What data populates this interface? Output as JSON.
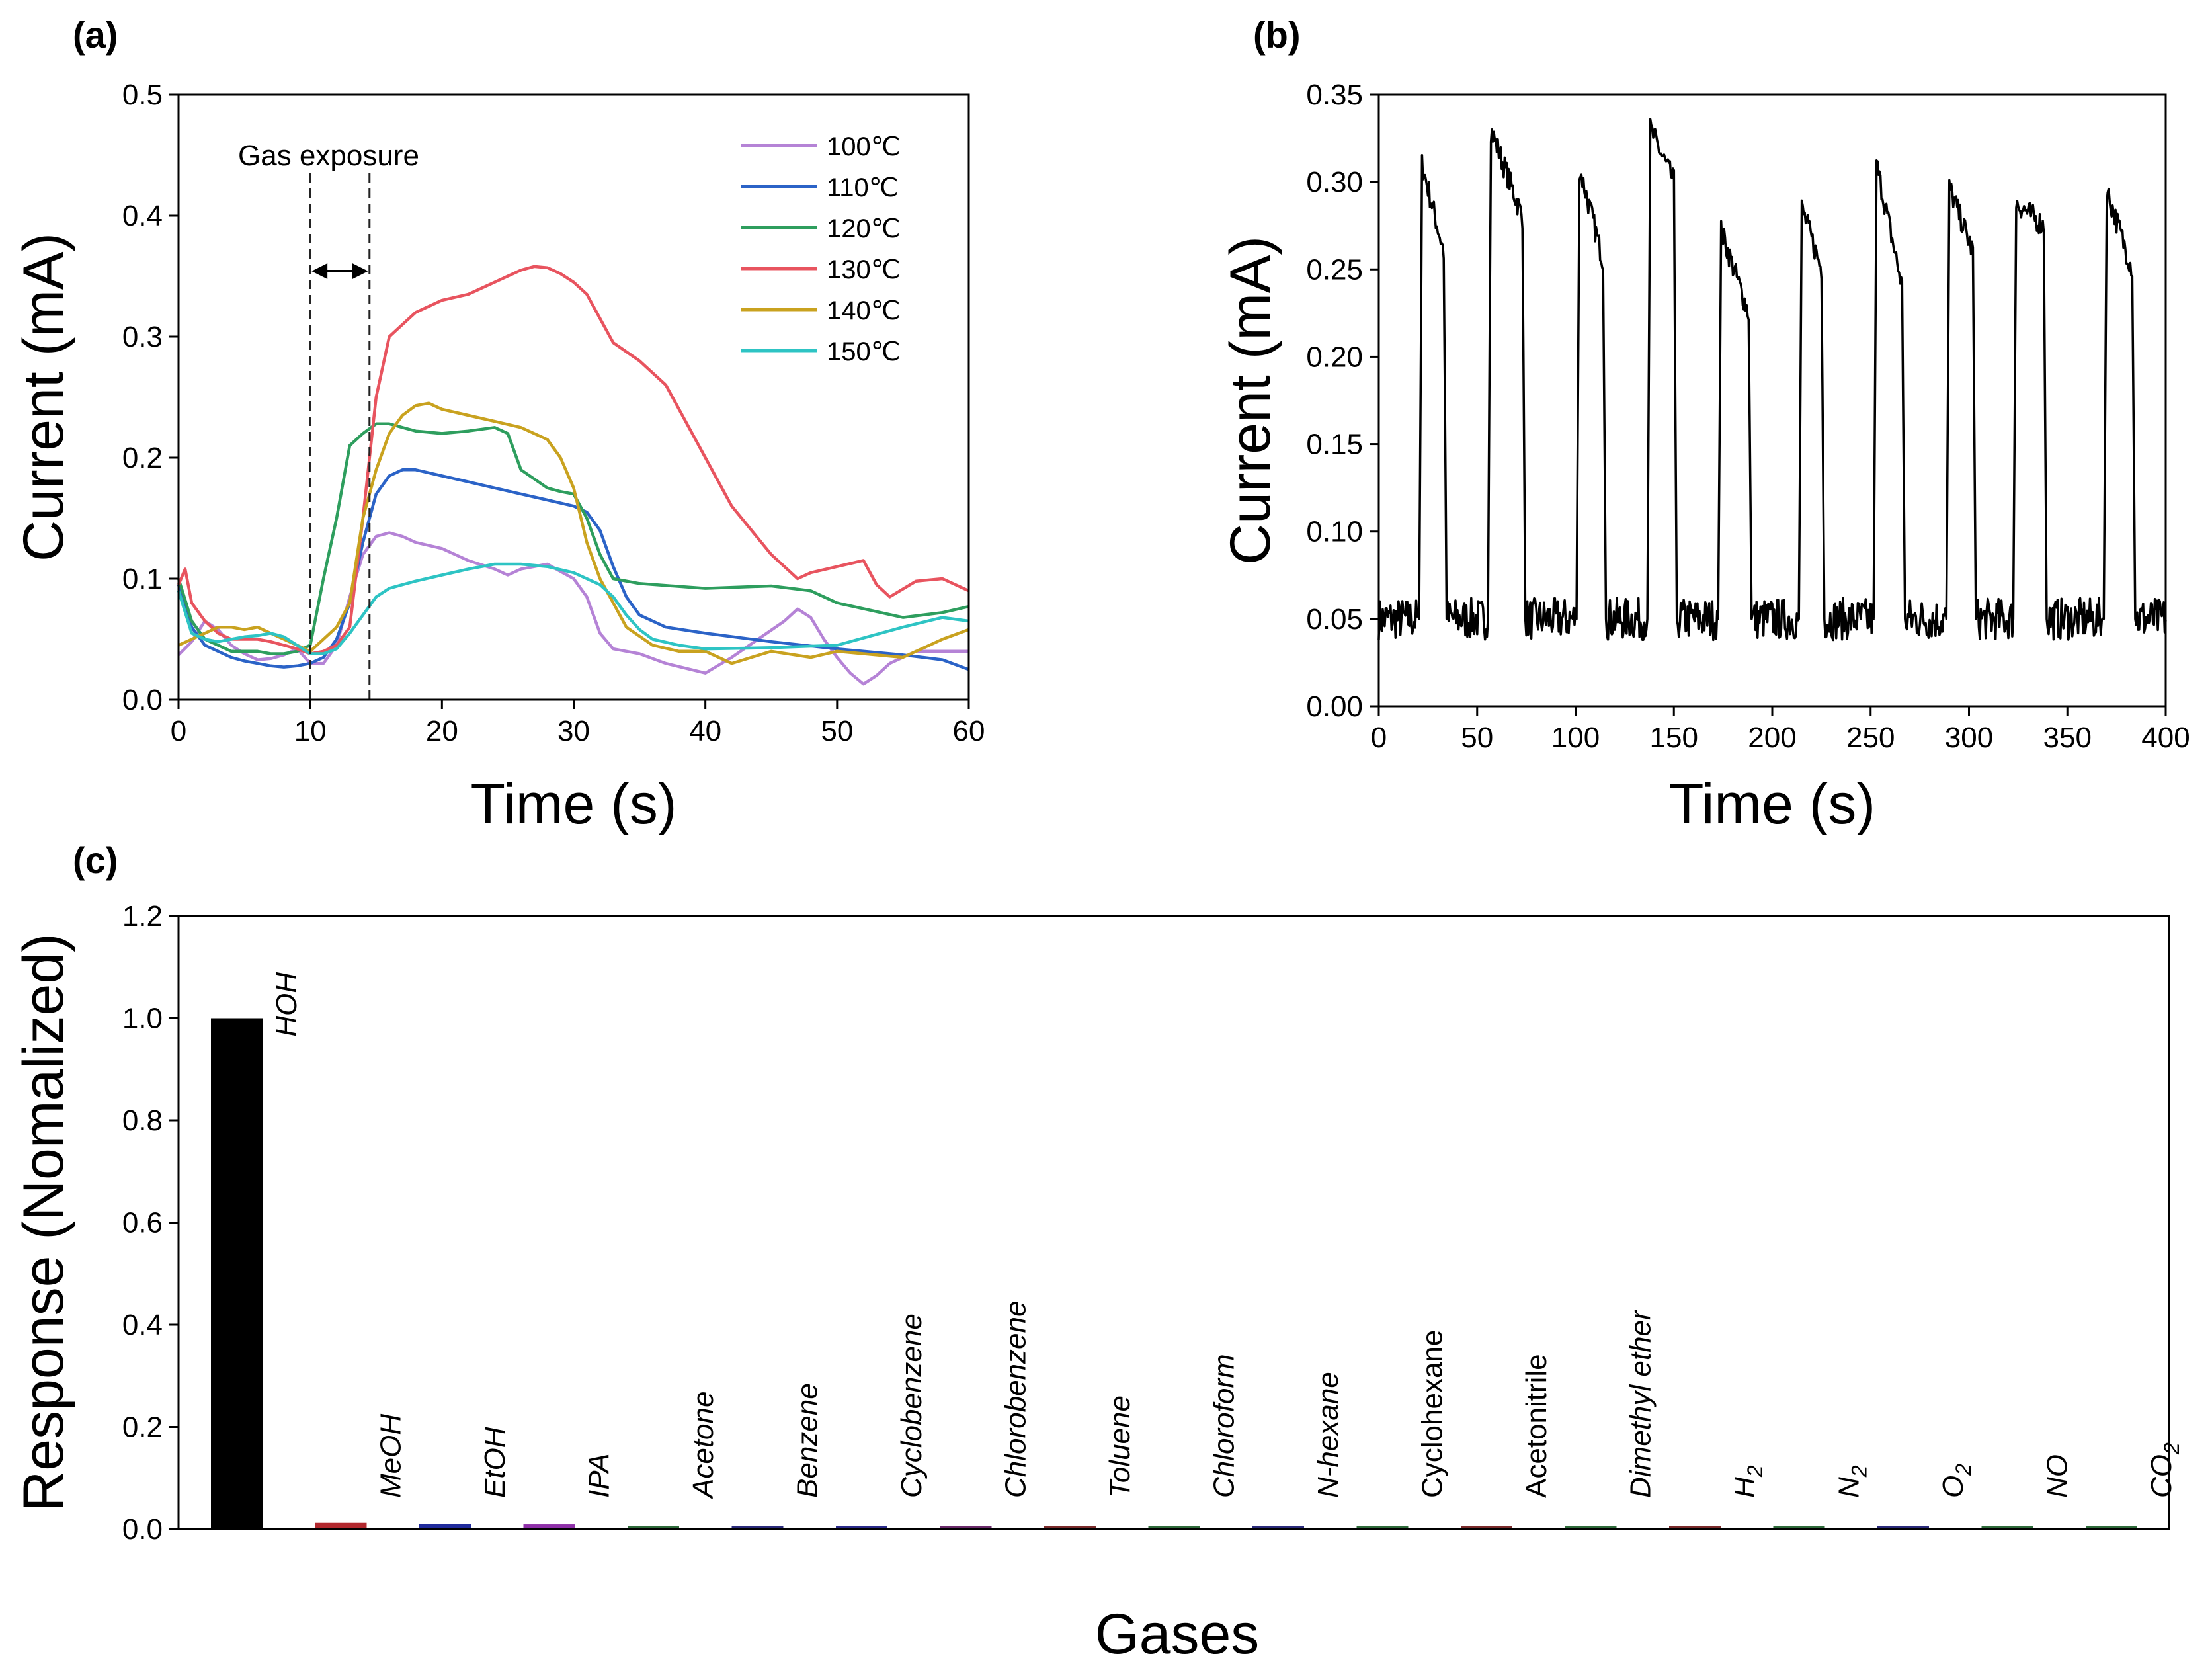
{
  "chart_data": [
    {
      "id": "a",
      "type": "line",
      "panel_label": "(a)",
      "xlabel": "Time (s)",
      "ylabel": "Current (mA)",
      "xlim": [
        0,
        60
      ],
      "ylim": [
        0,
        0.5
      ],
      "xticks": [
        "0",
        "10",
        "20",
        "30",
        "40",
        "50",
        "60"
      ],
      "yticks": [
        "0.0",
        "0.1",
        "0.2",
        "0.3",
        "0.4",
        "0.5"
      ],
      "annotation": "Gas exposure",
      "exposure_window": [
        10,
        14.5
      ],
      "legend_position": "top-right",
      "series": [
        {
          "name": "100℃",
          "color": "#b583d6",
          "x": [
            0,
            1,
            2,
            3,
            4,
            5,
            6,
            7,
            8,
            9,
            10,
            11,
            12,
            13,
            14,
            15,
            16,
            17,
            18,
            20,
            22,
            24,
            25,
            26,
            28,
            30,
            31,
            32,
            33,
            34,
            35,
            37,
            40,
            42,
            44,
            46,
            47,
            48,
            49,
            50,
            51,
            52,
            53,
            54,
            56,
            58,
            60
          ],
          "y": [
            0.037,
            0.048,
            0.065,
            0.058,
            0.045,
            0.038,
            0.033,
            0.034,
            0.037,
            0.042,
            0.03,
            0.03,
            0.045,
            0.085,
            0.12,
            0.135,
            0.138,
            0.135,
            0.13,
            0.125,
            0.115,
            0.108,
            0.103,
            0.108,
            0.112,
            0.1,
            0.085,
            0.055,
            0.042,
            0.04,
            0.038,
            0.03,
            0.022,
            0.035,
            0.05,
            0.065,
            0.075,
            0.068,
            0.05,
            0.035,
            0.022,
            0.013,
            0.02,
            0.03,
            0.04,
            0.04,
            0.04
          ]
        },
        {
          "name": "110℃",
          "color": "#2b63c7",
          "x": [
            0,
            1,
            2,
            3,
            4,
            5,
            6,
            7,
            8,
            9,
            10,
            11,
            12,
            13,
            14,
            15,
            16,
            17,
            18,
            20,
            22,
            24,
            26,
            28,
            30,
            31,
            32,
            33,
            34,
            35,
            37,
            40,
            45,
            50,
            55,
            58,
            60
          ],
          "y": [
            0.095,
            0.06,
            0.045,
            0.04,
            0.035,
            0.032,
            0.03,
            0.028,
            0.027,
            0.028,
            0.03,
            0.035,
            0.05,
            0.08,
            0.13,
            0.17,
            0.185,
            0.19,
            0.19,
            0.185,
            0.18,
            0.175,
            0.17,
            0.165,
            0.16,
            0.155,
            0.14,
            0.11,
            0.085,
            0.07,
            0.06,
            0.055,
            0.048,
            0.042,
            0.037,
            0.033,
            0.025
          ]
        },
        {
          "name": "120℃",
          "color": "#2e9e5e",
          "x": [
            0,
            1,
            2,
            3,
            4,
            5,
            6,
            7,
            8,
            9,
            10,
            11,
            12,
            13,
            14,
            15,
            16,
            17,
            18,
            20,
            22,
            24,
            25,
            26,
            28,
            29,
            30,
            31,
            32,
            33,
            35,
            40,
            45,
            48,
            50,
            55,
            58,
            60
          ],
          "y": [
            0.1,
            0.065,
            0.05,
            0.045,
            0.04,
            0.04,
            0.04,
            0.038,
            0.038,
            0.04,
            0.045,
            0.1,
            0.15,
            0.21,
            0.22,
            0.228,
            0.228,
            0.225,
            0.222,
            0.22,
            0.222,
            0.225,
            0.22,
            0.19,
            0.175,
            0.172,
            0.17,
            0.15,
            0.12,
            0.1,
            0.096,
            0.092,
            0.094,
            0.09,
            0.08,
            0.068,
            0.072,
            0.077
          ]
        },
        {
          "name": "130℃",
          "color": "#e8545f",
          "x": [
            0,
            0.5,
            1,
            2,
            3,
            4,
            5,
            6,
            7,
            8,
            9,
            10,
            11,
            12,
            13,
            14,
            15,
            16,
            18,
            20,
            22,
            24,
            26,
            27,
            28,
            29,
            30,
            31,
            32,
            33,
            35,
            37,
            40,
            42,
            45,
            47,
            48,
            50,
            52,
            53,
            54,
            56,
            58,
            60
          ],
          "y": [
            0.095,
            0.108,
            0.08,
            0.065,
            0.055,
            0.05,
            0.05,
            0.05,
            0.048,
            0.045,
            0.042,
            0.038,
            0.04,
            0.045,
            0.06,
            0.15,
            0.25,
            0.3,
            0.32,
            0.33,
            0.335,
            0.345,
            0.355,
            0.358,
            0.357,
            0.352,
            0.345,
            0.335,
            0.315,
            0.295,
            0.28,
            0.26,
            0.2,
            0.16,
            0.12,
            0.1,
            0.105,
            0.11,
            0.115,
            0.095,
            0.085,
            0.098,
            0.1,
            0.09
          ]
        },
        {
          "name": "140℃",
          "color": "#c9a21f",
          "x": [
            0,
            1,
            2,
            3,
            4,
            5,
            6,
            7,
            8,
            9,
            10,
            11,
            12,
            13,
            14,
            15,
            16,
            17,
            18,
            19,
            20,
            22,
            24,
            26,
            28,
            29,
            30,
            31,
            32,
            33,
            34,
            36,
            38,
            40,
            42,
            45,
            48,
            50,
            55,
            58,
            60
          ],
          "y": [
            0.045,
            0.05,
            0.055,
            0.06,
            0.06,
            0.058,
            0.06,
            0.055,
            0.05,
            0.045,
            0.04,
            0.05,
            0.06,
            0.08,
            0.15,
            0.19,
            0.22,
            0.235,
            0.243,
            0.245,
            0.24,
            0.235,
            0.23,
            0.225,
            0.215,
            0.2,
            0.175,
            0.13,
            0.1,
            0.08,
            0.06,
            0.045,
            0.04,
            0.04,
            0.03,
            0.04,
            0.035,
            0.04,
            0.035,
            0.05,
            0.058
          ]
        },
        {
          "name": "150℃",
          "color": "#2ec4c4",
          "x": [
            0,
            1,
            2,
            3,
            4,
            5,
            6,
            7,
            8,
            9,
            10,
            11,
            12,
            13,
            14,
            15,
            16,
            17,
            18,
            20,
            22,
            24,
            26,
            28,
            30,
            32,
            33,
            34,
            35,
            36,
            38,
            40,
            45,
            50,
            55,
            58,
            60
          ],
          "y": [
            0.09,
            0.055,
            0.05,
            0.048,
            0.05,
            0.052,
            0.053,
            0.055,
            0.052,
            0.045,
            0.038,
            0.038,
            0.042,
            0.055,
            0.07,
            0.085,
            0.092,
            0.095,
            0.098,
            0.103,
            0.108,
            0.112,
            0.112,
            0.11,
            0.105,
            0.095,
            0.085,
            0.07,
            0.058,
            0.05,
            0.045,
            0.042,
            0.043,
            0.045,
            0.06,
            0.068,
            0.065
          ]
        }
      ]
    },
    {
      "id": "b",
      "type": "line",
      "panel_label": "(b)",
      "xlabel": "Time (s)",
      "ylabel": "Current (mA)",
      "xlim": [
        0,
        400
      ],
      "ylim": [
        0,
        0.35
      ],
      "xticks": [
        "0",
        "50",
        "100",
        "150",
        "200",
        "250",
        "300",
        "350",
        "400"
      ],
      "yticks": [
        "0.00",
        "0.05",
        "0.10",
        "0.15",
        "0.20",
        "0.25",
        "0.30",
        "0.35"
      ],
      "series": [
        {
          "name": "Current",
          "color": "#000000",
          "baseline": 0.05,
          "noise_amplitude": 0.012,
          "pulses": [
            {
              "start": 22,
              "end": 33,
              "peak": 0.31,
              "shoulder": 0.26
            },
            {
              "start": 57,
              "end": 73,
              "peak": 0.33,
              "shoulder": 0.28
            },
            {
              "start": 102,
              "end": 114,
              "peak": 0.308,
              "shoulder": 0.255
            },
            {
              "start": 138,
              "end": 150,
              "peak": 0.33,
              "shoulder": 0.3
            },
            {
              "start": 174,
              "end": 188,
              "peak": 0.272,
              "shoulder": 0.225
            },
            {
              "start": 215,
              "end": 225,
              "peak": 0.285,
              "shoulder": 0.25
            },
            {
              "start": 253,
              "end": 266,
              "peak": 0.31,
              "shoulder": 0.24
            },
            {
              "start": 290,
              "end": 302,
              "peak": 0.297,
              "shoulder": 0.26
            },
            {
              "start": 324,
              "end": 338,
              "peak": 0.288,
              "shoulder": 0.275
            },
            {
              "start": 370,
              "end": 383,
              "peak": 0.295,
              "shoulder": 0.25
            }
          ]
        }
      ]
    },
    {
      "id": "c",
      "type": "bar",
      "panel_label": "(c)",
      "xlabel": "Gases",
      "ylabel": "Response (Nomalized)",
      "ylim": [
        0,
        1.2
      ],
      "yticks": [
        "0.0",
        "0.2",
        "0.4",
        "0.6",
        "0.8",
        "1.0",
        "1.2"
      ],
      "categories": [
        {
          "label": "HOH",
          "italic": true,
          "value": 1.0,
          "color": "#000000"
        },
        {
          "label": "MeOH",
          "italic": true,
          "value": 0.012,
          "color": "#b2282e"
        },
        {
          "label": "EtOH",
          "italic": true,
          "value": 0.01,
          "color": "#1f2a9c"
        },
        {
          "label": "IPA",
          "italic": true,
          "value": 0.009,
          "color": "#8e2fa8"
        },
        {
          "label": "Acetone",
          "italic": true,
          "value": 0.005,
          "color": "#2e6b3a"
        },
        {
          "label": "Benzene",
          "italic": true,
          "value": 0.005,
          "color": "#2a2a7a"
        },
        {
          "label": "Cyclobenzene",
          "italic": true,
          "value": 0.005,
          "color": "#2a2a8a"
        },
        {
          "label": "Chlorobenzene",
          "italic": true,
          "value": 0.005,
          "color": "#6a2a6a"
        },
        {
          "label": "Toluene",
          "italic": true,
          "value": 0.005,
          "color": "#7a2a2a"
        },
        {
          "label": "Chloroform",
          "italic": true,
          "value": 0.005,
          "color": "#2e6b3a"
        },
        {
          "label": "N-hexane",
          "italic": true,
          "value": 0.005,
          "color": "#2a2a7a"
        },
        {
          "label": "Cyclohexane",
          "italic": false,
          "value": 0.005,
          "color": "#2e6b3a"
        },
        {
          "label": "Acetonitrile",
          "italic": false,
          "value": 0.005,
          "color": "#7a2a2a"
        },
        {
          "label": "Dimethyl ether",
          "italic": true,
          "value": 0.005,
          "color": "#2e6b3a"
        },
        {
          "label": "H",
          "sub": "2",
          "italic": true,
          "value": 0.005,
          "color": "#7a2a2a"
        },
        {
          "label": "N",
          "sub": "2",
          "italic": true,
          "value": 0.005,
          "color": "#2e6b3a"
        },
        {
          "label": "O",
          "sub": "2",
          "italic": true,
          "value": 0.005,
          "color": "#2a2a7a"
        },
        {
          "label": "NO",
          "italic": true,
          "value": 0.005,
          "color": "#2e6b3a"
        },
        {
          "label": "CO",
          "sub": "2",
          "italic": true,
          "value": 0.005,
          "color": "#2e6b3a"
        }
      ]
    }
  ]
}
